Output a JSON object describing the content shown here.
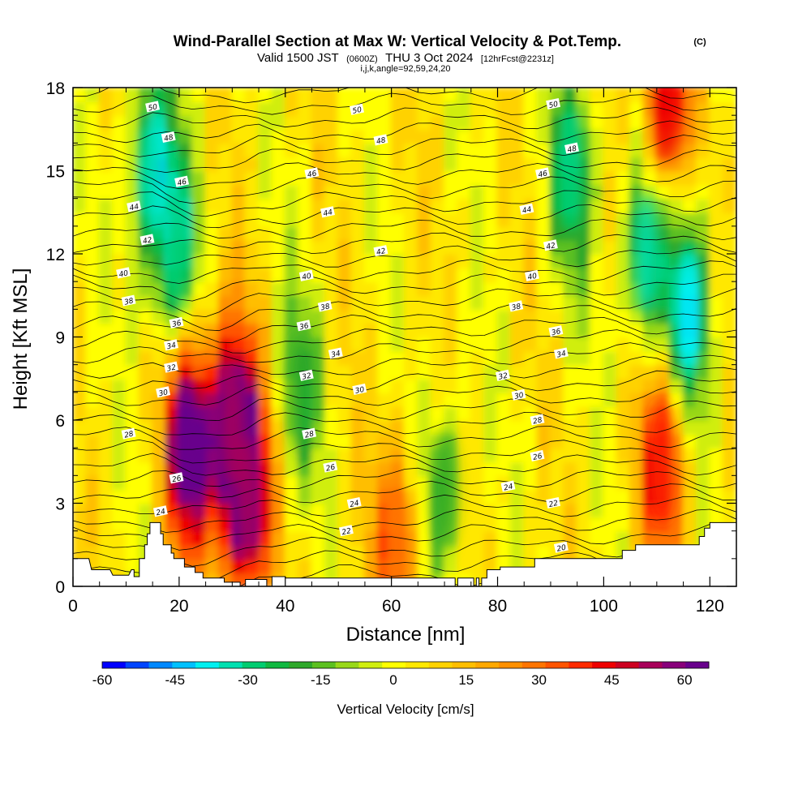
{
  "chart_data": {
    "type": "heatmap",
    "title": "Wind-Parallel Section at Max W: Vertical Velocity & Pot.Temp.",
    "title_mark": "(C)",
    "subtitle": {
      "valid": "Valid 1500 JST",
      "utc": "(0600Z)",
      "date": "THU 3 Oct 2024",
      "fcst": "[12hrFcst@2231z]"
    },
    "params": "i,j,k,angle=92,59,24,20",
    "xlabel": "Distance [nm]",
    "ylabel": "Height [Kft MSL]",
    "xlim": [
      0,
      125
    ],
    "ylim": [
      0,
      18
    ],
    "x_ticks": [
      "0",
      "20",
      "40",
      "60",
      "80",
      "100",
      "120"
    ],
    "y_ticks": [
      "0",
      "3",
      "6",
      "9",
      "12",
      "15",
      "18"
    ],
    "colorbar": {
      "label": "Vertical Velocity [cm/s]",
      "range": [
        -60,
        65
      ],
      "ticks": [
        "-60",
        "-45",
        "-30",
        "-15",
        "0",
        "15",
        "30",
        "45",
        "60"
      ],
      "colors": [
        "#0000ff",
        "#0044ff",
        "#0088ff",
        "#00c0ff",
        "#00f0f0",
        "#00e0b0",
        "#00cc70",
        "#10b840",
        "#2ea82a",
        "#5cc020",
        "#98d818",
        "#d0ee10",
        "#ffff00",
        "#ffe800",
        "#ffd200",
        "#ffbe00",
        "#ffa800",
        "#ff9000",
        "#ff7400",
        "#ff5400",
        "#ff2a00",
        "#ee0000",
        "#cc0020",
        "#a8005a",
        "#88007a",
        "#68008c"
      ]
    },
    "features": [
      {
        "kind": "updraft",
        "x": 22,
        "y": 5.2,
        "w": 65
      },
      {
        "kind": "updraft",
        "x": 30,
        "y": 5.8,
        "w": 55
      },
      {
        "kind": "updraft",
        "x": 33,
        "y": 3.2,
        "w": 55
      },
      {
        "kind": "updraft",
        "x": 112,
        "y": 17.5,
        "w": 45
      },
      {
        "kind": "updraft",
        "x": 111,
        "y": 4.5,
        "w": 40
      },
      {
        "kind": "updraft",
        "x": 61,
        "y": 1.5,
        "w": 30
      },
      {
        "kind": "downdraft",
        "x": 15,
        "y": 15,
        "w": -35
      },
      {
        "kind": "downdraft",
        "x": 19.5,
        "y": 12,
        "w": -30
      },
      {
        "kind": "downdraft",
        "x": 116,
        "y": 10,
        "w": -40
      },
      {
        "kind": "downdraft",
        "x": 108,
        "y": 12,
        "w": -32
      },
      {
        "kind": "downdraft",
        "x": 94,
        "y": 15,
        "w": -30
      },
      {
        "kind": "downdraft",
        "x": 43,
        "y": 7,
        "w": -20
      },
      {
        "kind": "downdraft",
        "x": 70,
        "y": 3.5,
        "w": -18
      }
    ],
    "theta_contours": [
      "20",
      "22",
      "24",
      "26",
      "28",
      "30",
      "32",
      "34",
      "36",
      "38",
      "40",
      "42",
      "44",
      "46",
      "48",
      "50"
    ],
    "contour_labels": [
      {
        "text": "50",
        "x": 15,
        "y": 17.3
      },
      {
        "text": "48",
        "x": 18,
        "y": 16.2
      },
      {
        "text": "46",
        "x": 20.5,
        "y": 14.6
      },
      {
        "text": "44",
        "x": 11.5,
        "y": 13.7
      },
      {
        "text": "42",
        "x": 14,
        "y": 12.5
      },
      {
        "text": "40",
        "x": 9.5,
        "y": 11.3
      },
      {
        "text": "38",
        "x": 10.5,
        "y": 10.3
      },
      {
        "text": "36",
        "x": 19.5,
        "y": 9.5
      },
      {
        "text": "34",
        "x": 18.5,
        "y": 8.7
      },
      {
        "text": "32",
        "x": 18.5,
        "y": 7.9
      },
      {
        "text": "30",
        "x": 17,
        "y": 7.0
      },
      {
        "text": "28",
        "x": 10.5,
        "y": 5.5
      },
      {
        "text": "26",
        "x": 19.5,
        "y": 3.9
      },
      {
        "text": "24",
        "x": 16.5,
        "y": 2.7
      },
      {
        "text": "50",
        "x": 53.5,
        "y": 17.2
      },
      {
        "text": "48",
        "x": 58,
        "y": 16.1
      },
      {
        "text": "46",
        "x": 45,
        "y": 14.9
      },
      {
        "text": "44",
        "x": 48,
        "y": 13.5
      },
      {
        "text": "42",
        "x": 58,
        "y": 12.1
      },
      {
        "text": "40",
        "x": 44,
        "y": 11.2
      },
      {
        "text": "38",
        "x": 47.5,
        "y": 10.1
      },
      {
        "text": "36",
        "x": 43.5,
        "y": 9.4
      },
      {
        "text": "34",
        "x": 49.5,
        "y": 8.4
      },
      {
        "text": "32",
        "x": 44,
        "y": 7.6
      },
      {
        "text": "30",
        "x": 54,
        "y": 7.1
      },
      {
        "text": "28",
        "x": 44.5,
        "y": 5.5
      },
      {
        "text": "26",
        "x": 48.5,
        "y": 4.3
      },
      {
        "text": "24",
        "x": 53,
        "y": 3.0
      },
      {
        "text": "22",
        "x": 51.5,
        "y": 2.0
      },
      {
        "text": "50",
        "x": 90.5,
        "y": 17.4
      },
      {
        "text": "48",
        "x": 94,
        "y": 15.8
      },
      {
        "text": "46",
        "x": 88.5,
        "y": 14.9
      },
      {
        "text": "44",
        "x": 85.5,
        "y": 13.6
      },
      {
        "text": "42",
        "x": 90,
        "y": 12.3
      },
      {
        "text": "40",
        "x": 86.5,
        "y": 11.2
      },
      {
        "text": "38",
        "x": 83.5,
        "y": 10.1
      },
      {
        "text": "36",
        "x": 91,
        "y": 9.2
      },
      {
        "text": "34",
        "x": 92,
        "y": 8.4
      },
      {
        "text": "32",
        "x": 81,
        "y": 7.6
      },
      {
        "text": "30",
        "x": 84,
        "y": 6.9
      },
      {
        "text": "28",
        "x": 87.5,
        "y": 6.0
      },
      {
        "text": "26",
        "x": 87.5,
        "y": 4.7
      },
      {
        "text": "24",
        "x": 82,
        "y": 3.6
      },
      {
        "text": "22",
        "x": 90.5,
        "y": 3.0
      },
      {
        "text": "20",
        "x": 92,
        "y": 1.4
      }
    ],
    "terrain": [
      [
        0,
        1.0
      ],
      [
        3,
        1.0
      ],
      [
        3.5,
        0.6
      ],
      [
        7,
        0.6
      ],
      [
        7.5,
        0.4
      ],
      [
        10.5,
        0.4
      ],
      [
        11,
        0.6
      ],
      [
        11.5,
        0.6
      ],
      [
        11.5,
        0.35
      ],
      [
        12.5,
        0.35
      ],
      [
        12.5,
        1.0
      ],
      [
        13.5,
        1.0
      ],
      [
        13.5,
        1.5
      ],
      [
        14,
        1.5
      ],
      [
        14,
        1.9
      ],
      [
        14.5,
        1.9
      ],
      [
        14.5,
        2.3
      ],
      [
        16.5,
        2.3
      ],
      [
        16.5,
        1.9
      ],
      [
        17,
        1.9
      ],
      [
        17,
        1.5
      ],
      [
        18.5,
        1.5
      ],
      [
        18.5,
        1.2
      ],
      [
        19,
        1.2
      ],
      [
        19,
        1.0
      ],
      [
        21,
        1.0
      ],
      [
        21,
        0.7
      ],
      [
        23,
        0.7
      ],
      [
        23,
        0.5
      ],
      [
        24.5,
        0.5
      ],
      [
        24.5,
        0.3
      ],
      [
        28.5,
        0.3
      ],
      [
        28.5,
        0.15
      ],
      [
        31.5,
        0.15
      ],
      [
        31.5,
        0.0
      ],
      [
        32.5,
        0.0
      ],
      [
        32.5,
        0.25
      ],
      [
        36.5,
        0.25
      ],
      [
        36.5,
        0.0
      ],
      [
        37.5,
        0.0
      ],
      [
        37.5,
        0.35
      ],
      [
        40,
        0.35
      ],
      [
        40,
        0.3
      ],
      [
        72,
        0.3
      ],
      [
        72,
        0.0
      ],
      [
        72.5,
        0.0
      ],
      [
        72.5,
        0.3
      ],
      [
        75.5,
        0.3
      ],
      [
        75.5,
        0.0
      ],
      [
        76,
        0.0
      ],
      [
        76,
        0.3
      ],
      [
        76.5,
        0.3
      ],
      [
        76.5,
        0.0
      ],
      [
        77,
        0.0
      ],
      [
        77,
        0.3
      ],
      [
        78,
        0.3
      ],
      [
        78,
        0.6
      ],
      [
        80.5,
        0.6
      ],
      [
        80.5,
        0.7
      ],
      [
        87,
        0.7
      ],
      [
        87,
        1.0
      ],
      [
        103.5,
        1.0
      ],
      [
        103.5,
        1.3
      ],
      [
        106,
        1.3
      ],
      [
        106,
        1.5
      ],
      [
        118,
        1.5
      ],
      [
        118,
        1.8
      ],
      [
        119,
        1.8
      ],
      [
        119,
        2.1
      ],
      [
        120,
        2.1
      ],
      [
        120,
        2.3
      ],
      [
        125,
        2.3
      ]
    ]
  }
}
